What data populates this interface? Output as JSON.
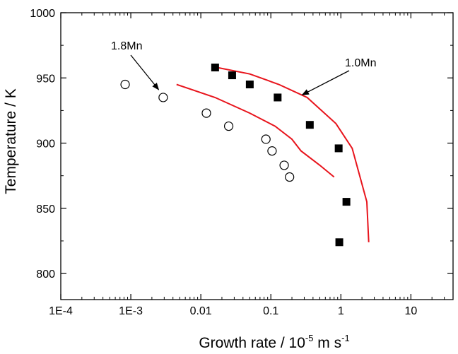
{
  "chart_data": {
    "type": "scatter",
    "title": "",
    "xlabel": {
      "main": "Growth rate / 10",
      "exp1": "-5",
      "unit": " m s",
      "exp2": "-1"
    },
    "ylabel": "Temperature / K",
    "xscale": "log",
    "xlim": [
      0.0001,
      40
    ],
    "ylim": [
      780,
      1000
    ],
    "x_ticks": [
      {
        "value": 0.0001,
        "label": "1E-4"
      },
      {
        "value": 0.001,
        "label": "1E-3"
      },
      {
        "value": 0.01,
        "label": "0.01"
      },
      {
        "value": 0.1,
        "label": "0.1"
      },
      {
        "value": 1,
        "label": "1"
      },
      {
        "value": 10,
        "label": "10"
      }
    ],
    "y_ticks": [
      {
        "value": 800,
        "label": "800"
      },
      {
        "value": 850,
        "label": "850"
      },
      {
        "value": 900,
        "label": "900"
      },
      {
        "value": 950,
        "label": "950"
      },
      {
        "value": 1000,
        "label": "1000"
      }
    ],
    "grid": false,
    "series": [
      {
        "name": "1.0Mn",
        "marker": "filled-square",
        "color": "#000000",
        "points": [
          [
            0.016,
            958
          ],
          [
            0.028,
            952
          ],
          [
            0.05,
            945
          ],
          [
            0.125,
            935
          ],
          [
            0.36,
            914
          ],
          [
            0.93,
            896
          ],
          [
            1.2,
            855
          ],
          [
            0.95,
            824
          ]
        ]
      },
      {
        "name": "1.8Mn",
        "marker": "open-circle",
        "color": "#000000",
        "points": [
          [
            0.00083,
            945
          ],
          [
            0.0029,
            935
          ],
          [
            0.012,
            923
          ],
          [
            0.025,
            913
          ],
          [
            0.085,
            903
          ],
          [
            0.104,
            894
          ],
          [
            0.155,
            883
          ],
          [
            0.185,
            874
          ]
        ]
      }
    ],
    "curves": [
      {
        "name": "1.0Mn-model",
        "color": "#e8141c",
        "points": [
          [
            0.017,
            958
          ],
          [
            0.05,
            953
          ],
          [
            0.13,
            945
          ],
          [
            0.33,
            935
          ],
          [
            0.85,
            915
          ],
          [
            1.45,
            896
          ],
          [
            2.35,
            855
          ],
          [
            2.5,
            824
          ]
        ]
      },
      {
        "name": "1.8Mn-model",
        "color": "#e8141c",
        "points": [
          [
            0.0045,
            945
          ],
          [
            0.016,
            935
          ],
          [
            0.05,
            923
          ],
          [
            0.115,
            913
          ],
          [
            0.2,
            903
          ],
          [
            0.27,
            894
          ],
          [
            0.5,
            883
          ],
          [
            0.8,
            874
          ]
        ]
      }
    ],
    "annotations": [
      {
        "text": "1.8Mn",
        "arrow_to": [
          0.0025,
          941
        ]
      },
      {
        "text": "1.0Mn",
        "arrow_to": [
          0.28,
          937
        ]
      }
    ]
  }
}
